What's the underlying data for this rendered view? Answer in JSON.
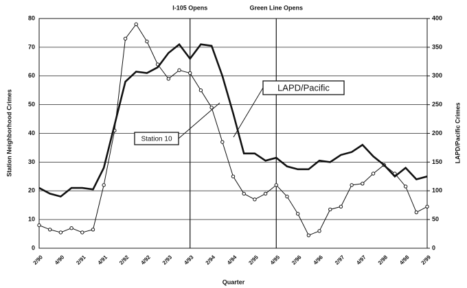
{
  "chart_data": {
    "type": "line",
    "x_label": "Quarter",
    "y_label": "Station Neighborhood Crimes",
    "y2_label": "LAPD/Pacific Crimes",
    "categories": [
      "2/90",
      null,
      "4/90",
      null,
      "2/91",
      null,
      "4/91",
      null,
      "2/92",
      null,
      "4/92",
      null,
      "2/93",
      null,
      "4/93",
      null,
      "2/94",
      null,
      "4/94",
      null,
      "2/95",
      null,
      "4/95",
      null,
      "2/96",
      null,
      "4/96",
      null,
      "2/97",
      null,
      "4/97",
      null,
      "2/98",
      null,
      "4/98",
      null,
      "2/99"
    ],
    "series": [
      {
        "name": "Station 10",
        "color": "#111111",
        "axis": "y",
        "values": [
          8,
          6.5,
          5.5,
          7,
          5.5,
          6.5,
          22,
          41,
          73,
          78,
          72,
          64,
          59,
          62,
          61,
          55,
          49,
          37,
          25,
          19,
          17,
          19,
          22,
          18,
          12,
          4.5,
          6,
          13.5,
          14.5,
          22,
          22.5,
          26,
          29,
          26,
          21.5,
          12.5,
          14.5
        ]
      },
      {
        "name": "LAPD/Pacific",
        "color": "#111111",
        "axis": "y2",
        "values": [
          105,
          95,
          90,
          105,
          105,
          102.5,
          140,
          215,
          290,
          307.5,
          305,
          315,
          340,
          355,
          330,
          355,
          352.5,
          300,
          235,
          165,
          165,
          152.5,
          157.5,
          142.5,
          137.5,
          137.5,
          152.5,
          150,
          162.5,
          167.5,
          180,
          160,
          145,
          125,
          140,
          120,
          125
        ]
      }
    ],
    "annotations": [
      {
        "text": "I-105 Opens",
        "at": "4/93"
      },
      {
        "text": "Green Line Opens",
        "at": "4/95"
      }
    ],
    "ylim": [
      0,
      80
    ],
    "yticks": [
      0,
      10,
      20,
      30,
      40,
      50,
      60,
      70,
      80
    ],
    "y2lim": [
      0,
      400
    ],
    "y2ticks": [
      0,
      50,
      100,
      150,
      200,
      250,
      300,
      350,
      400
    ],
    "grid": true
  }
}
